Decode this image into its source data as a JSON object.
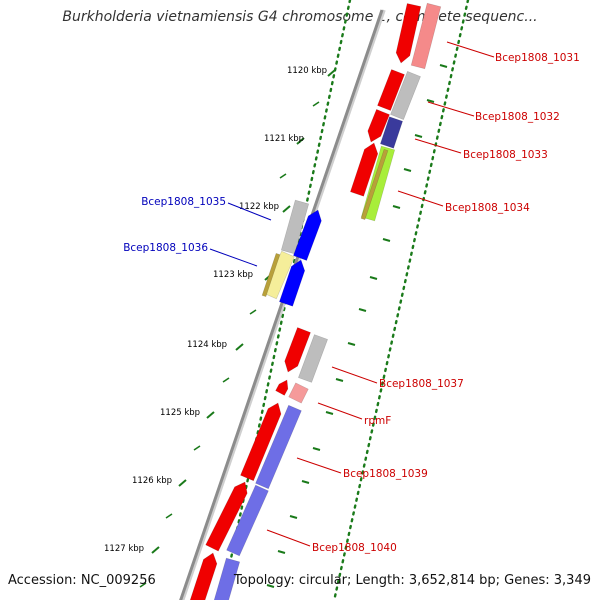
{
  "title": "Burkholderia vietnamiensis G4 chromosome 1, complete sequenc...",
  "accession": "Accession: NC_009256",
  "topology": "Topology: circular; Length: 3,652,814 bp; Genes: 3,349",
  "colors": {
    "backbone": "#8c8c8c",
    "tick": "#1a7a1a",
    "red": "#f00000",
    "gray": "#bdbdbd",
    "pink": "#f59a9a",
    "purple": "#6e6ee6",
    "navy": "#3a3a9c",
    "lime": "#a8ee3a",
    "olive": "#b8a03a",
    "blue": "#0000ff",
    "cream": "#f5ee9a",
    "label_forward": "#cc0000",
    "label_reverse": "#0000bb"
  },
  "scale_labels": [
    "1120 kbp",
    "1121 kbp",
    "1122 kbp",
    "1123 kbp",
    "1124 kbp",
    "1125 kbp",
    "1126 kbp",
    "1127 kbp"
  ],
  "gene_labels": [
    {
      "id": "Bcep1808_1031",
      "strand": "forward"
    },
    {
      "id": "Bcep1808_1032",
      "strand": "forward"
    },
    {
      "id": "Bcep1808_1033",
      "strand": "forward"
    },
    {
      "id": "Bcep1808_1034",
      "strand": "forward"
    },
    {
      "id": "Bcep1808_1035",
      "strand": "reverse"
    },
    {
      "id": "Bcep1808_1036",
      "strand": "reverse"
    },
    {
      "id": "Bcep1808_1037",
      "strand": "forward"
    },
    {
      "id": "rpmF",
      "strand": "forward"
    },
    {
      "id": "Bcep1808_1039",
      "strand": "forward"
    },
    {
      "id": "Bcep1808_1040",
      "strand": "forward"
    }
  ]
}
